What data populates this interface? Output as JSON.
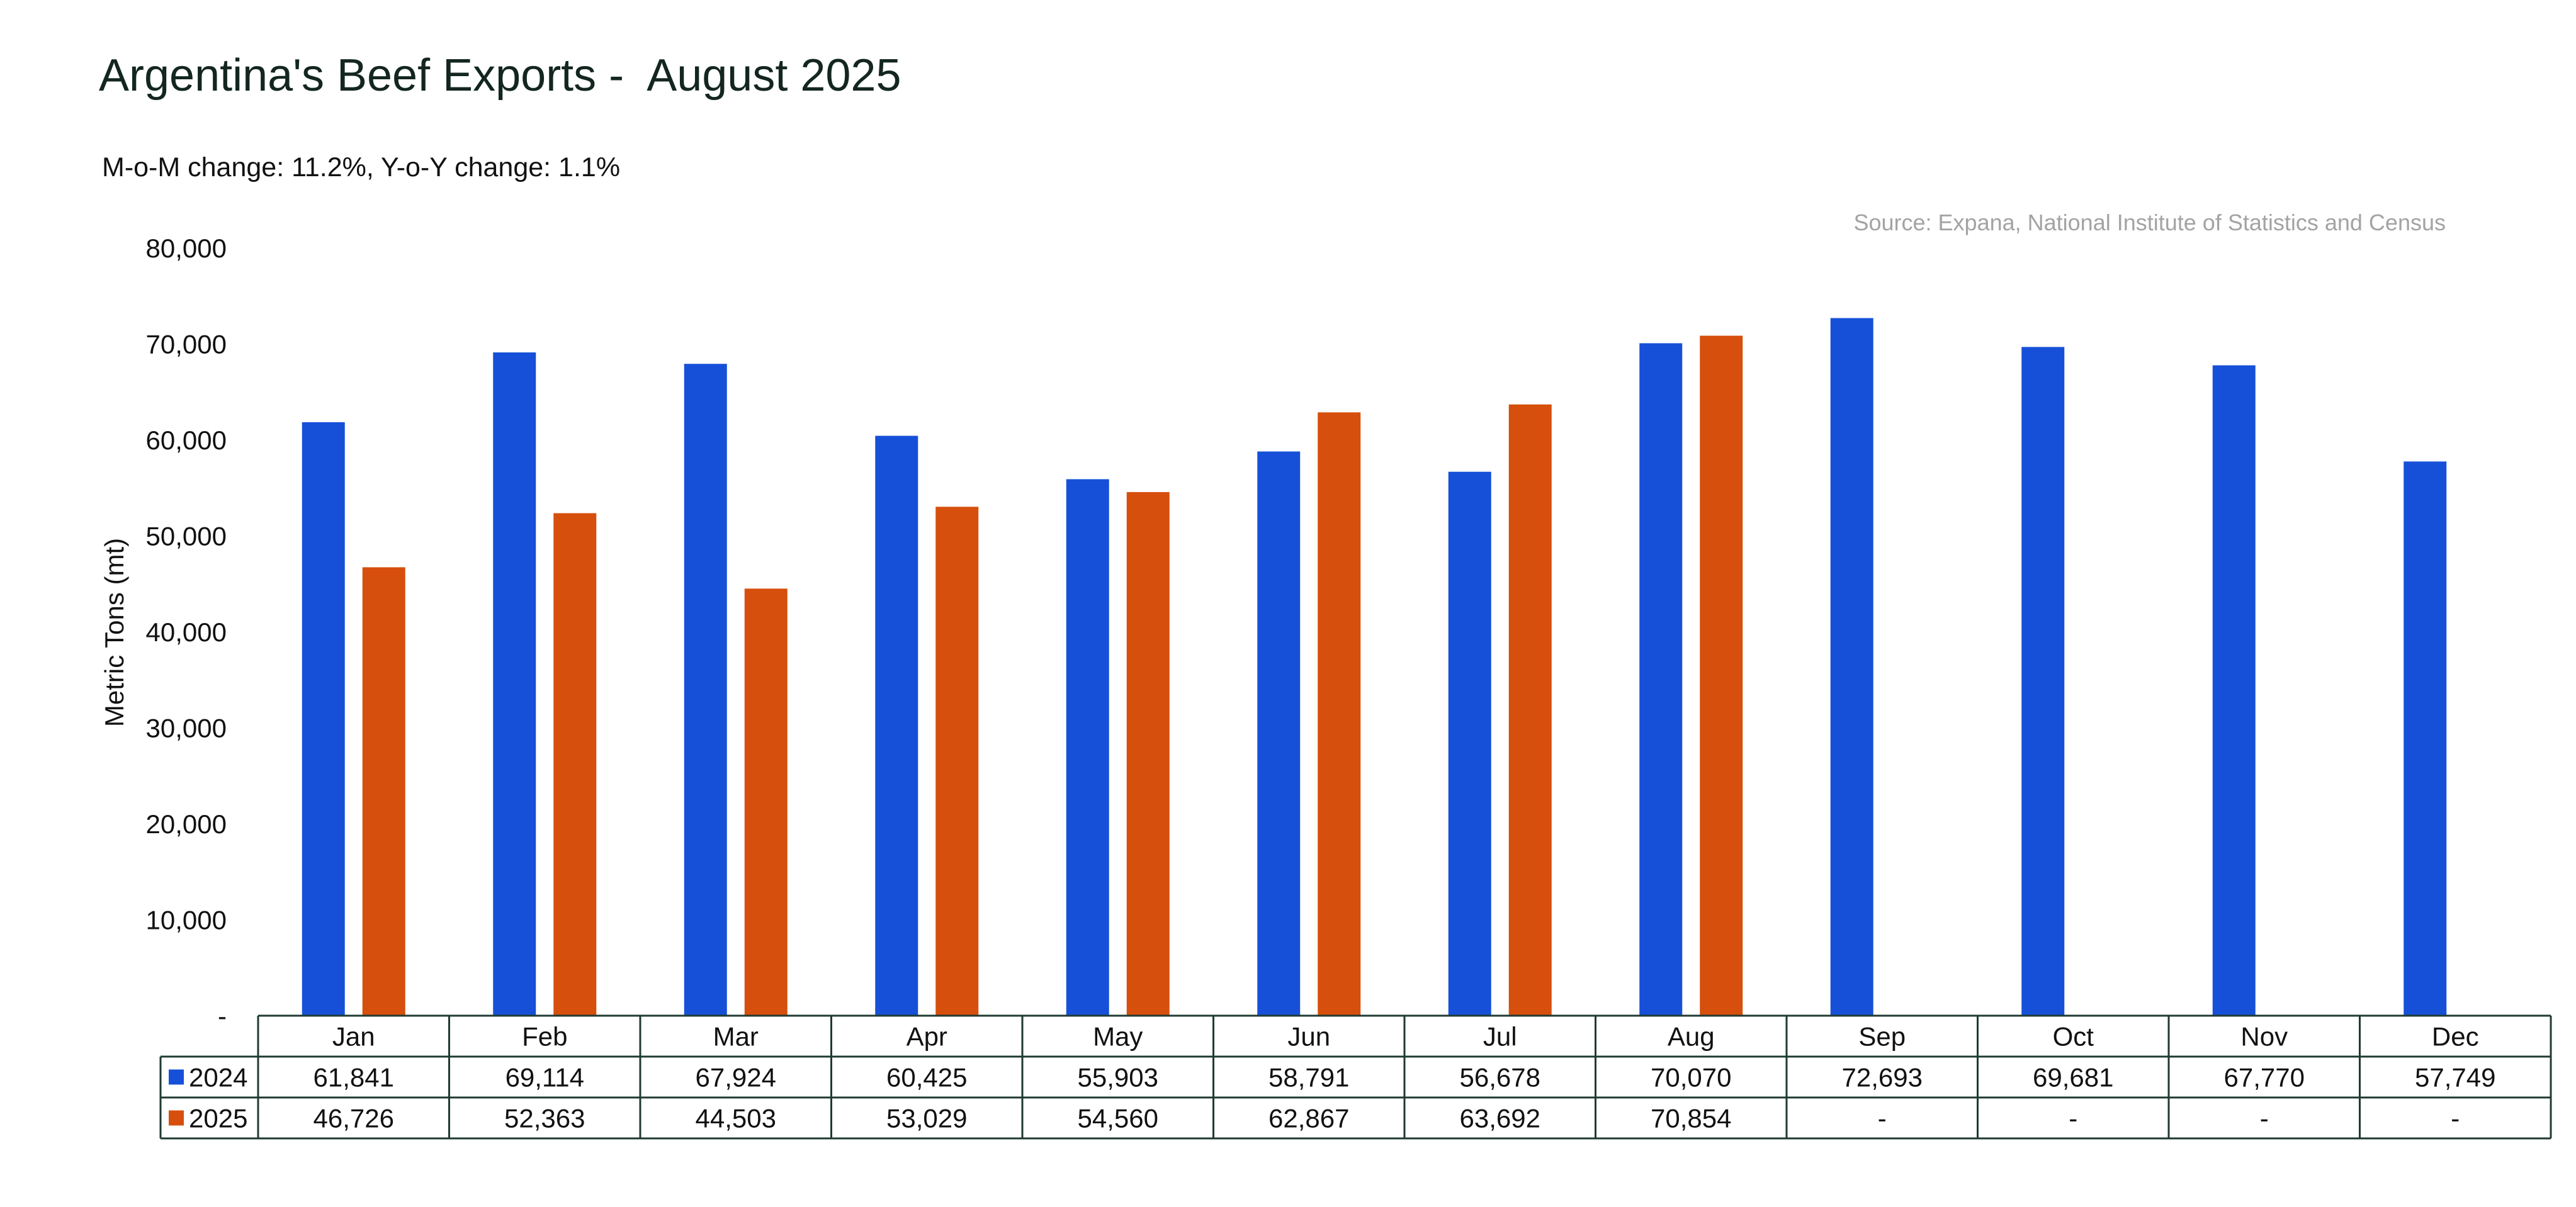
{
  "chart_data": {
    "type": "bar",
    "title": "Argentina's Beef Exports -  August 2025",
    "subtitle": "M-o-M change: 11.2%, Y-o-Y change: 1.1%",
    "source": "Source: Expana, National Institute of Statistics and Census",
    "ylabel": "Metric Tons (mt)",
    "xlabel": "",
    "ylim": [
      0,
      80000
    ],
    "y_ticks": [
      "-",
      "10,000",
      "20,000",
      "30,000",
      "40,000",
      "50,000",
      "60,000",
      "70,000",
      "80,000"
    ],
    "categories": [
      "Jan",
      "Feb",
      "Mar",
      "Apr",
      "May",
      "Jun",
      "Jul",
      "Aug",
      "Sep",
      "Oct",
      "Nov",
      "Dec"
    ],
    "series": [
      {
        "name": "2024",
        "color": "#1650d8",
        "values": [
          61841,
          69114,
          67924,
          60425,
          55903,
          58791,
          56678,
          70070,
          72693,
          69681,
          67770,
          57749
        ],
        "labels": [
          "61,841",
          "69,114",
          "67,924",
          "60,425",
          "55,903",
          "58,791",
          "56,678",
          "70,070",
          "72,693",
          "69,681",
          "67,770",
          "57,749"
        ]
      },
      {
        "name": "2025",
        "color": "#d64f0c",
        "values": [
          46726,
          52363,
          44503,
          53029,
          54560,
          62867,
          63692,
          70854,
          null,
          null,
          null,
          null
        ],
        "labels": [
          "46,726",
          "52,363",
          "44,503",
          "53,029",
          "54,560",
          "62,867",
          "63,692",
          "70,854",
          "-",
          "-",
          "-",
          "-"
        ]
      }
    ],
    "grid": false,
    "legend": "data-table"
  }
}
